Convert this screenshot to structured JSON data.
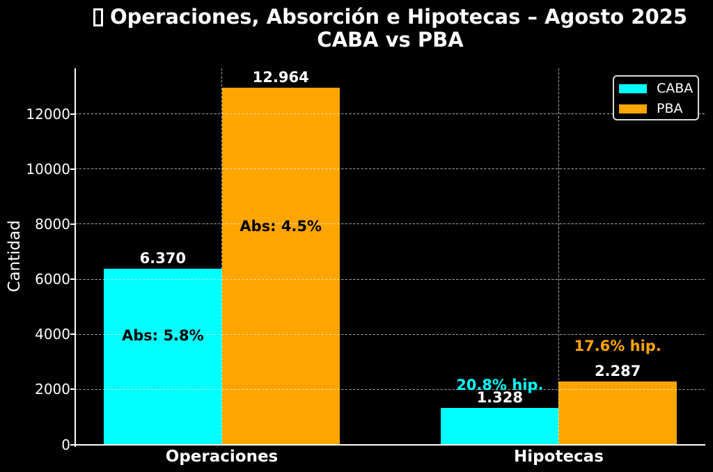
{
  "chart_data": {
    "type": "bar",
    "title": "Operaciones, Absorción e Hipotecas – Agosto 2025",
    "title_prefix_missing_glyph": "□",
    "subtitle": "CABA vs PBA",
    "ylabel": "Cantidad",
    "xlabel": "",
    "categories": [
      "Operaciones",
      "Hipotecas"
    ],
    "series": [
      {
        "name": "CABA",
        "color": "#00FFFF",
        "values": [
          6370,
          1328
        ],
        "value_labels": [
          "6.370",
          "1.328"
        ]
      },
      {
        "name": "PBA",
        "color": "#FFA500",
        "values": [
          12964,
          2287
        ],
        "value_labels": [
          "12.964",
          "2.287"
        ]
      }
    ],
    "yticks": [
      0,
      2000,
      4000,
      6000,
      8000,
      10000,
      12000
    ],
    "ytick_labels": [
      "0",
      "2000",
      "4000",
      "6000",
      "8000",
      "10000",
      "12000"
    ],
    "ylim": [
      0,
      13660
    ],
    "grid": {
      "on": true,
      "style": "dashed"
    },
    "legend": {
      "position": "upper right",
      "entries": [
        "CABA",
        "PBA"
      ]
    },
    "annotations": [
      {
        "text": "Abs: 5.8%",
        "color": "#000000",
        "category": 0,
        "series": 0,
        "y": 3960
      },
      {
        "text": "Abs: 4.5%",
        "color": "#000000",
        "category": 0,
        "series": 1,
        "y": 7920
      },
      {
        "text": "20.8% hip.",
        "color": "#00FFFF",
        "category": 1,
        "series": 0,
        "y": 2170
      },
      {
        "text": "17.6% hip.",
        "color": "#FFA500",
        "category": 1,
        "series": 1,
        "y": 3570
      }
    ],
    "colors": {
      "background": "#000000",
      "text": "#FFFFFF",
      "axis": "#FFFFFF",
      "grid": "rgba(255,255,255,0.65)"
    }
  }
}
